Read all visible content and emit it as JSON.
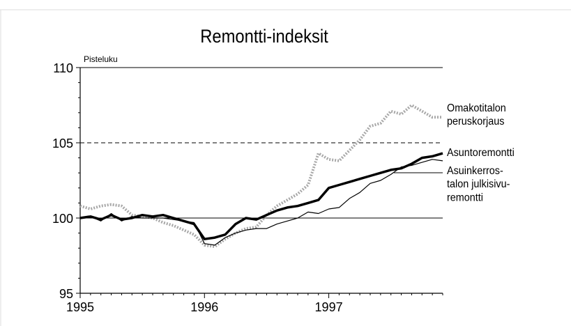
{
  "chart_data": {
    "type": "line",
    "title": "Remontti-indeksit",
    "y_label": "Pisteluku",
    "categories": [
      "1995",
      null,
      null,
      null,
      null,
      null,
      null,
      null,
      null,
      null,
      null,
      null,
      "1996",
      null,
      null,
      null,
      null,
      null,
      null,
      null,
      null,
      null,
      null,
      null,
      "1997",
      null,
      null,
      null,
      null,
      null,
      null,
      null,
      null,
      null,
      null,
      null
    ],
    "ylim": [
      95,
      110
    ],
    "yticks": [
      95,
      100,
      105,
      110
    ],
    "reference_lines": [
      {
        "value": 105,
        "style": "dashed"
      },
      {
        "value": 100,
        "style": "solid"
      }
    ],
    "series": [
      {
        "name": "Omakotitalon\nperuskorjaus",
        "color": "#a8a8a8",
        "style": "dotted",
        "values": [
          100.8,
          100.6,
          100.8,
          100.9,
          100.8,
          100.2,
          100.1,
          100.0,
          99.7,
          99.5,
          99.2,
          98.9,
          98.2,
          98.1,
          98.6,
          99.0,
          99.3,
          99.4,
          100.2,
          100.8,
          101.2,
          101.6,
          102.2,
          104.3,
          103.9,
          103.8,
          104.5,
          105.2,
          106.1,
          106.3,
          107.1,
          106.9,
          107.5,
          107.1,
          106.7,
          106.7
        ]
      },
      {
        "name": "Asuntoremontti",
        "color": "#000000",
        "style": "thick",
        "values": [
          100.0,
          100.1,
          99.9,
          100.2,
          99.9,
          100.0,
          100.2,
          100.1,
          100.2,
          100.0,
          99.8,
          99.6,
          98.6,
          98.7,
          98.9,
          99.6,
          100.0,
          99.9,
          100.2,
          100.5,
          100.7,
          100.8,
          101.0,
          101.2,
          102.0,
          102.2,
          102.4,
          102.6,
          102.8,
          103.0,
          103.2,
          103.3,
          103.6,
          104.0,
          104.1,
          104.3
        ]
      },
      {
        "name": "Asuinkerros-\ntalon julkisivu-\nremontti",
        "color": "#000000",
        "style": "thin",
        "values": [
          100.0,
          100.1,
          99.8,
          100.3,
          99.8,
          100.1,
          100.0,
          100.0,
          100.0,
          99.9,
          99.8,
          99.7,
          98.3,
          98.2,
          98.7,
          99.0,
          99.2,
          99.3,
          99.3,
          99.6,
          99.8,
          100.0,
          100.4,
          100.3,
          100.6,
          100.7,
          101.3,
          101.7,
          102.3,
          102.5,
          102.9,
          103.4,
          103.5,
          103.7,
          103.9,
          103.8
        ]
      }
    ]
  }
}
